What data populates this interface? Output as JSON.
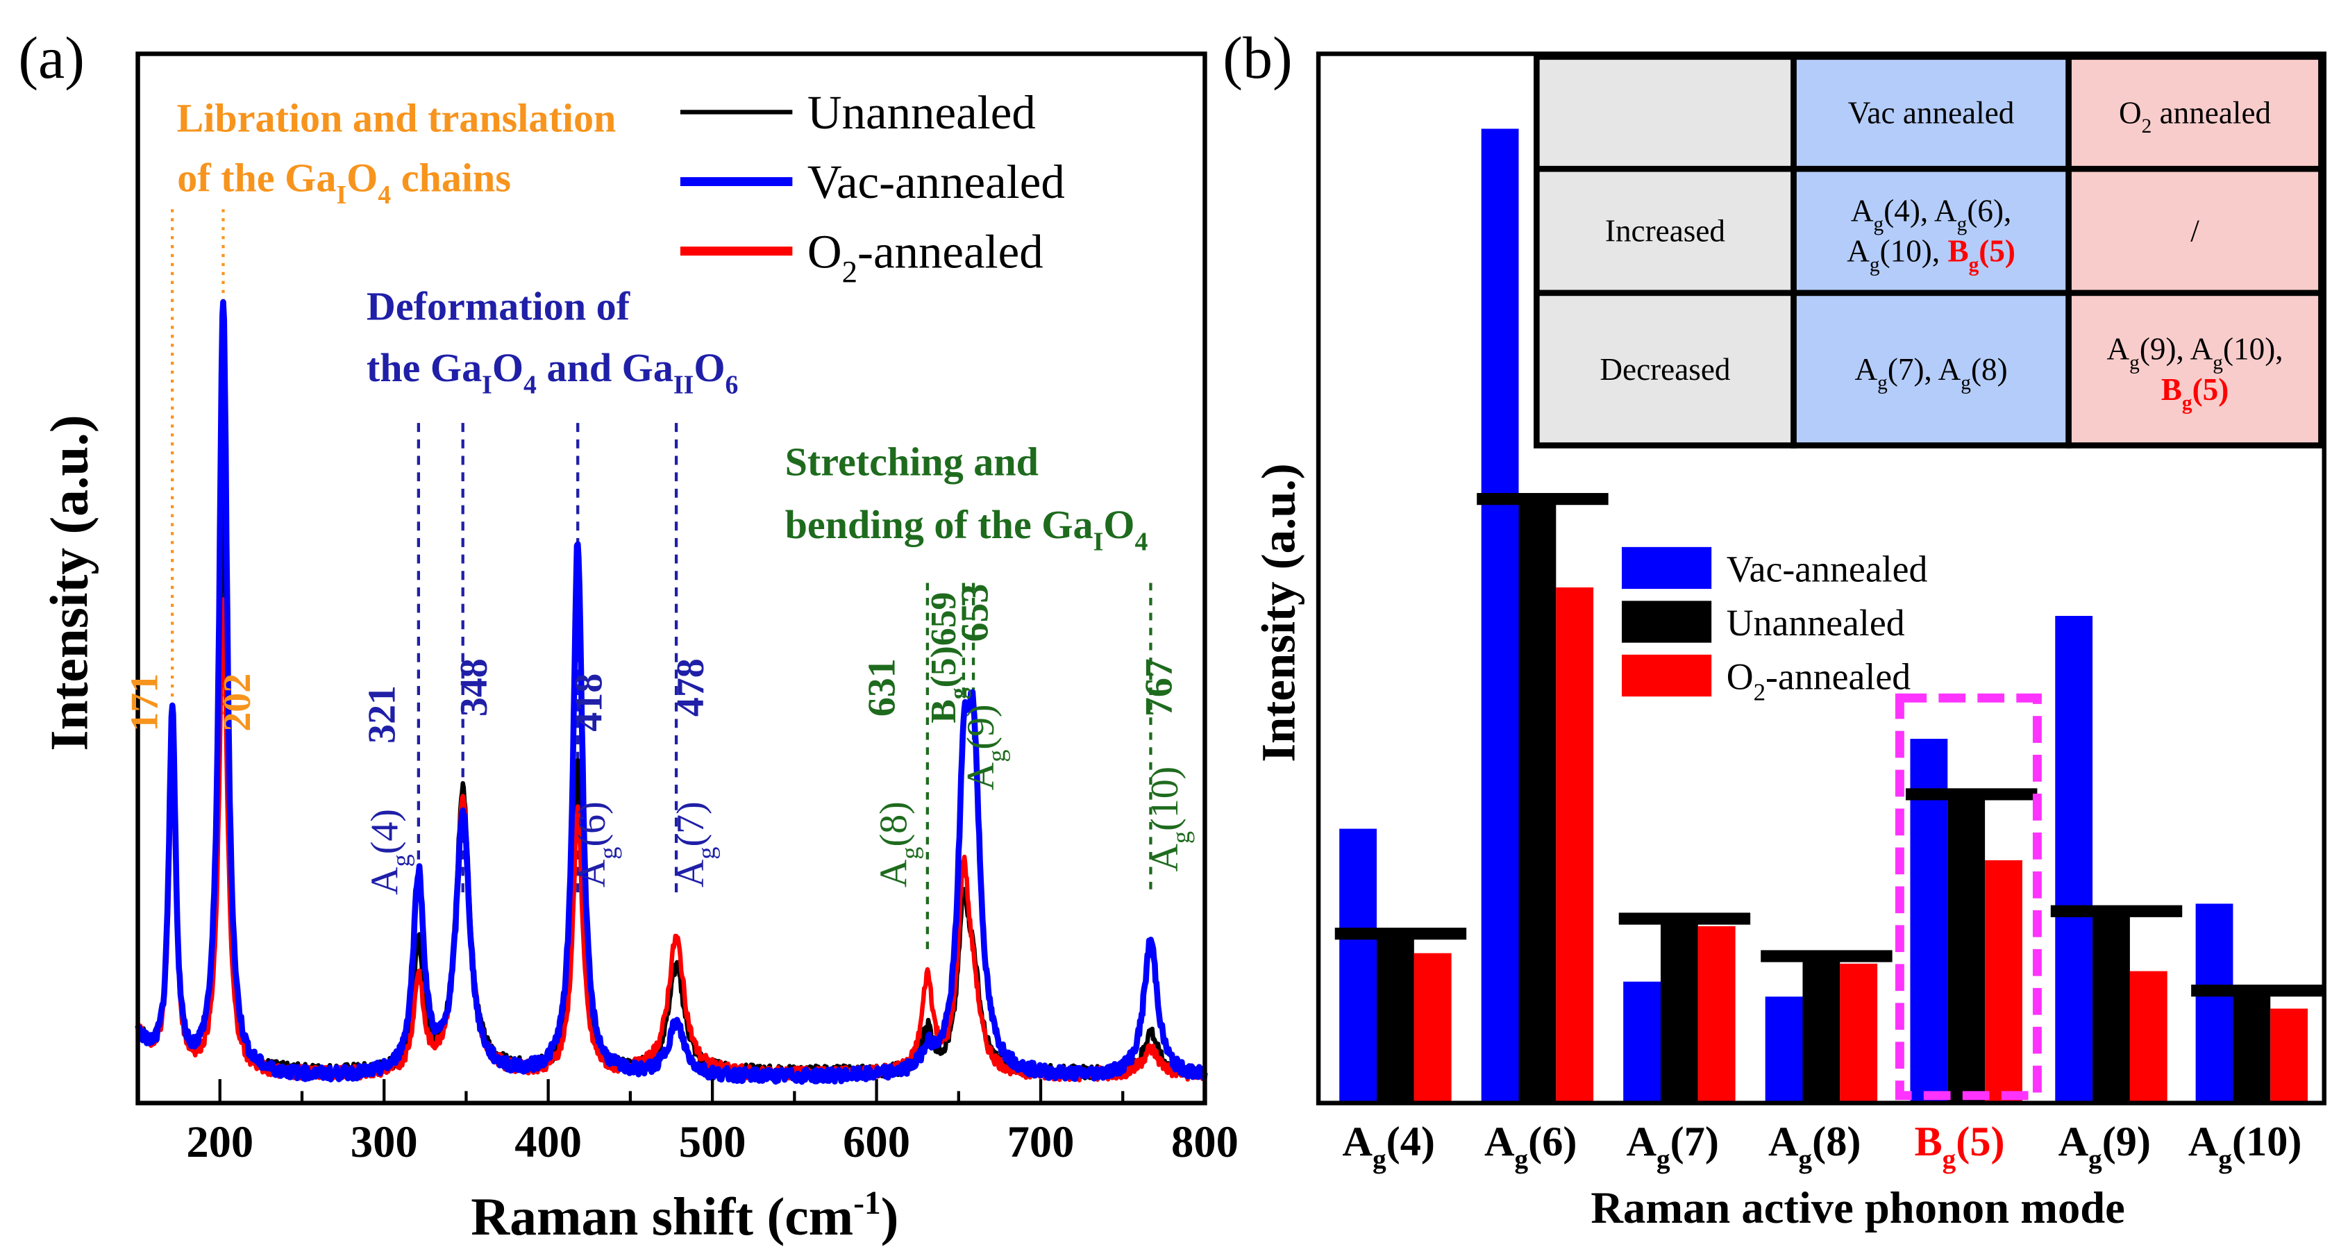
{
  "colors": {
    "unannealed": "#000000",
    "vac": "#0000ff",
    "o2": "#ff0000",
    "orange": "#f7941d",
    "blue_text": "#1f1fa8",
    "green_text": "#1e6b1e",
    "gray_cell": "#e6e6e6",
    "blue_cell": "#b4ccf9",
    "pink_cell": "#f9cccc",
    "magenta": "#ff33ff"
  },
  "panel_labels": {
    "a": "(a)",
    "b": "(b)"
  },
  "chart_data": [
    {
      "type": "line",
      "title": "",
      "xlabel": "Raman shift",
      "xlabel_unit": [
        "(cm",
        "-1",
        ")"
      ],
      "ylabel": "Intensity (a.u.)",
      "xlim": [
        150,
        800
      ],
      "ylim": [
        0,
        100
      ],
      "xticks": [
        "200",
        "300",
        "400",
        "500",
        "600",
        "700",
        "800"
      ],
      "legend": {
        "placement": "top-right",
        "entries": [
          {
            "key": "unannealed",
            "label": "Unannealed"
          },
          {
            "key": "vac",
            "label": "Vac-annealed"
          },
          {
            "key": "o2",
            "label": [
              [
                "O",
                ""
              ],
              [
                "2",
                "sub"
              ],
              [
                "-annealed",
                ""
              ]
            ]
          }
        ]
      },
      "series": [
        {
          "key": "unannealed",
          "name": "Unannealed",
          "baseline": 2.8,
          "peaks": [
            [
              171,
              31,
              2.5
            ],
            [
              202,
              55,
              3
            ],
            [
              321,
              12,
              3.5
            ],
            [
              348,
              27,
              5
            ],
            [
              418,
              30,
              3.5
            ],
            [
              478,
              10,
              6
            ],
            [
              631,
              4,
              4
            ],
            [
              653,
              14,
              4
            ],
            [
              659,
              8,
              5
            ],
            [
              767,
              4,
              5
            ]
          ]
        },
        {
          "key": "o2",
          "name": "O2-annealed",
          "baseline": 2.6,
          "peaks": [
            [
              171,
              30,
              2.5
            ],
            [
              202,
              45,
              3
            ],
            [
              321,
              9,
              3.5
            ],
            [
              348,
              26,
              5
            ],
            [
              418,
              25,
              3.5
            ],
            [
              478,
              13,
              6
            ],
            [
              631,
              9,
              4
            ],
            [
              653,
              18,
              4
            ],
            [
              659,
              6,
              5
            ],
            [
              767,
              2.5,
              6
            ]
          ]
        },
        {
          "key": "vac",
          "name": "Vac-annealed",
          "baseline": 2.4,
          "peaks": [
            [
              171,
              34,
              2.5
            ],
            [
              202,
              74,
              3
            ],
            [
              321,
              19,
              4
            ],
            [
              348,
              25,
              5
            ],
            [
              418,
              51,
              3.5
            ],
            [
              478,
              5,
              6
            ],
            [
              631,
              2,
              4
            ],
            [
              653,
              22,
              4
            ],
            [
              659,
              29,
              5
            ],
            [
              767,
              13,
              5
            ]
          ]
        }
      ],
      "annotations": {
        "libration": {
          "line1": [
            [
              "Libration and translation",
              ""
            ]
          ],
          "line2": [
            [
              "of the Ga",
              ""
            ],
            [
              "I",
              "sub"
            ],
            [
              "O",
              ""
            ],
            [
              "4",
              "sub"
            ],
            [
              " chains",
              ""
            ]
          ]
        },
        "deformation": {
          "line1": [
            [
              "Deformation of",
              ""
            ]
          ],
          "line2": [
            [
              "the Ga",
              ""
            ],
            [
              "I",
              "sub"
            ],
            [
              "O",
              ""
            ],
            [
              "4",
              "sub"
            ],
            [
              " and Ga",
              ""
            ],
            [
              "II",
              "sub"
            ],
            [
              "O",
              ""
            ],
            [
              "6",
              "sub"
            ]
          ]
        },
        "stretching": {
          "line1": [
            [
              "Stretching and",
              ""
            ]
          ],
          "line2": [
            [
              "bending of the Ga",
              ""
            ],
            [
              "I",
              "sub"
            ],
            [
              "O",
              ""
            ],
            [
              "4",
              "sub"
            ]
          ]
        }
      },
      "peak_labels": [
        {
          "pos": 171,
          "group": "orange",
          "value": "171",
          "mode": null
        },
        {
          "pos": 202,
          "group": "orange",
          "value": "202",
          "mode": null
        },
        {
          "pos": 321,
          "group": "blue",
          "value": "321",
          "mode": [
            [
              "A",
              ""
            ],
            [
              "g",
              "sub"
            ],
            [
              "(4)",
              ""
            ]
          ]
        },
        {
          "pos": 348,
          "group": "blue",
          "value": "348",
          "mode": null
        },
        {
          "pos": 418,
          "group": "blue",
          "value": "418",
          "mode": [
            [
              "A",
              ""
            ],
            [
              "g",
              "sub"
            ],
            [
              "(6)",
              ""
            ]
          ]
        },
        {
          "pos": 478,
          "group": "blue",
          "value": "478",
          "mode": [
            [
              "A",
              ""
            ],
            [
              "g",
              "sub"
            ],
            [
              "(7)",
              ""
            ]
          ]
        },
        {
          "pos": 631,
          "group": "green",
          "value": "631",
          "mode": [
            [
              "A",
              ""
            ],
            [
              "g",
              "sub"
            ],
            [
              "(8)",
              ""
            ]
          ]
        },
        {
          "pos": 659,
          "group": "green",
          "value": "659",
          "mode": [
            [
              "B",
              ""
            ],
            [
              "g",
              "sub"
            ],
            [
              "(5)",
              ""
            ]
          ]
        },
        {
          "pos": 653,
          "group": "green",
          "value": "653",
          "mode": [
            [
              "A",
              ""
            ],
            [
              "g",
              "sub"
            ],
            [
              "(9)",
              ""
            ]
          ]
        },
        {
          "pos": 767,
          "group": "green",
          "value": "767",
          "mode": [
            [
              "A",
              ""
            ],
            [
              "g",
              "sub"
            ],
            [
              "(10)",
              ""
            ]
          ]
        }
      ]
    },
    {
      "type": "bar",
      "xlabel": "Raman active phonon mode",
      "ylabel": "Intensity (a.u.)",
      "ylim": [
        0,
        700
      ],
      "categories": [
        [
          [
            "A",
            ""
          ],
          [
            "g",
            "sub"
          ],
          [
            "(4)",
            ""
          ]
        ],
        [
          [
            "A",
            ""
          ],
          [
            "g",
            "sub"
          ],
          [
            "(6)",
            ""
          ]
        ],
        [
          [
            "A",
            ""
          ],
          [
            "g",
            "sub"
          ],
          [
            "(7)",
            ""
          ]
        ],
        [
          [
            "A",
            ""
          ],
          [
            "g",
            "sub"
          ],
          [
            "(8)",
            ""
          ]
        ],
        [
          [
            "B",
            "red"
          ],
          [
            "g",
            "redsub"
          ],
          [
            "(5)",
            "red"
          ]
        ],
        [
          [
            "A",
            ""
          ],
          [
            "g",
            "sub"
          ],
          [
            "(9)",
            ""
          ]
        ],
        [
          [
            "A",
            ""
          ],
          [
            "g",
            "sub"
          ],
          [
            "(10)",
            ""
          ]
        ]
      ],
      "highlight_category_index": 4,
      "legend": {
        "placement": "center-left",
        "entries": [
          {
            "key": "vac",
            "label": [
              [
                "Vac-annealed",
                ""
              ]
            ]
          },
          {
            "key": "unannealed",
            "label": [
              [
                "Unannealed",
                ""
              ]
            ]
          },
          {
            "key": "o2",
            "label": [
              [
                "O",
                ""
              ],
              [
                "2",
                "sub"
              ],
              [
                "-annealed",
                ""
              ]
            ]
          }
        ]
      },
      "series": [
        {
          "key": "vac",
          "name": "Vac-annealed",
          "values": [
            183,
            650,
            81,
            71,
            243,
            325,
            133
          ]
        },
        {
          "key": "unannealed",
          "name": "Unannealed",
          "values": [
            113,
            403,
            123,
            98,
            206,
            128,
            75
          ]
        },
        {
          "key": "o2",
          "name": "O2-annealed",
          "values": [
            100,
            344,
            118,
            93,
            162,
            88,
            63
          ]
        }
      ],
      "table": {
        "header": [
          [
            [
              "",
              ""
            ]
          ],
          [
            [
              "Vac annealed",
              ""
            ]
          ],
          [
            [
              "O",
              ""
            ],
            [
              "2",
              "sub"
            ],
            [
              " annealed",
              ""
            ]
          ]
        ],
        "rows": [
          {
            "label": [
              [
                "Increased",
                ""
              ]
            ],
            "vac": [
              [
                [
                  "A",
                  ""
                ],
                [
                  "g",
                  "sub"
                ],
                [
                  "(4), A",
                  ""
                ],
                [
                  "g",
                  "sub"
                ],
                [
                  "(6),",
                  ""
                ]
              ],
              [
                [
                  "A",
                  ""
                ],
                [
                  "g",
                  "sub"
                ],
                [
                  "(10), ",
                  ""
                ],
                [
                  "B",
                  "redb"
                ],
                [
                  "g",
                  "redsub"
                ],
                [
                  "(5)",
                  "redb"
                ]
              ]
            ],
            "o2": [
              [
                [
                  "/",
                  ""
                ]
              ]
            ]
          },
          {
            "label": [
              [
                "Decreased",
                ""
              ]
            ],
            "vac": [
              [
                [
                  "A",
                  ""
                ],
                [
                  "g",
                  "sub"
                ],
                [
                  "(7), A",
                  ""
                ],
                [
                  "g",
                  "sub"
                ],
                [
                  "(8)",
                  ""
                ]
              ]
            ],
            "o2": [
              [
                [
                  "A",
                  ""
                ],
                [
                  "g",
                  "sub"
                ],
                [
                  "(9), A",
                  ""
                ],
                [
                  "g",
                  "sub"
                ],
                [
                  "(10),",
                  ""
                ]
              ],
              [
                [
                  "B",
                  "redb"
                ],
                [
                  "g",
                  "redsub"
                ],
                [
                  "(5)",
                  "redb"
                ]
              ]
            ]
          }
        ]
      }
    }
  ]
}
